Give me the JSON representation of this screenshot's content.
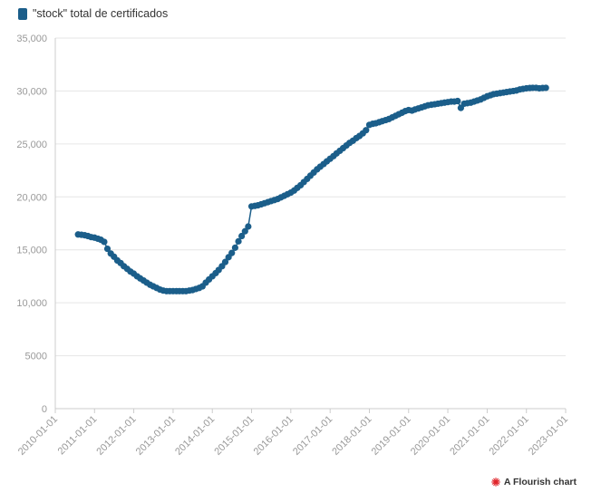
{
  "legend": {
    "label": "\"stock\" total de certificados",
    "color": "#1b5e8a"
  },
  "attribution": {
    "label": "A Flourish chart",
    "icon": "flourish-logo-icon",
    "icon_color": "#e0242a"
  },
  "chart_data": {
    "type": "line",
    "xlabel": "",
    "ylabel": "",
    "x_axis": "date",
    "xlim": [
      "2010-01-01",
      "2023-01-01"
    ],
    "ylim": [
      0,
      35000
    ],
    "grid": true,
    "legend_placement": "top-left",
    "x_ticks": [
      "2010-01-01",
      "2011-01-01",
      "2012-01-01",
      "2013-01-01",
      "2014-01-01",
      "2015-01-01",
      "2016-01-01",
      "2017-01-01",
      "2018-01-01",
      "2019-01-01",
      "2020-01-01",
      "2021-01-01",
      "2022-01-01",
      "2023-01-01"
    ],
    "y_ticks": [
      0,
      5000,
      10000,
      15000,
      20000,
      25000,
      30000,
      35000
    ],
    "y_tick_labels": [
      "0",
      "5000",
      "10,000",
      "15,000",
      "20,000",
      "25,000",
      "30,000",
      "35,000"
    ],
    "series": [
      {
        "name": "\"stock\" total de certificados",
        "color": "#1b5e8a",
        "points": [
          [
            "2010-08-01",
            16450
          ],
          [
            "2010-09-01",
            16420
          ],
          [
            "2010-10-01",
            16380
          ],
          [
            "2010-11-01",
            16300
          ],
          [
            "2010-12-01",
            16200
          ],
          [
            "2011-01-01",
            16150
          ],
          [
            "2011-02-01",
            16050
          ],
          [
            "2011-03-01",
            15950
          ],
          [
            "2011-04-01",
            15750
          ],
          [
            "2011-05-01",
            15100
          ],
          [
            "2011-06-01",
            14650
          ],
          [
            "2011-07-01",
            14350
          ],
          [
            "2011-08-01",
            14000
          ],
          [
            "2011-09-01",
            13750
          ],
          [
            "2011-10-01",
            13450
          ],
          [
            "2011-11-01",
            13200
          ],
          [
            "2011-12-01",
            12950
          ],
          [
            "2012-01-01",
            12750
          ],
          [
            "2012-02-01",
            12500
          ],
          [
            "2012-03-01",
            12300
          ],
          [
            "2012-04-01",
            12100
          ],
          [
            "2012-05-01",
            11900
          ],
          [
            "2012-06-01",
            11700
          ],
          [
            "2012-07-01",
            11550
          ],
          [
            "2012-08-01",
            11400
          ],
          [
            "2012-09-01",
            11250
          ],
          [
            "2012-10-01",
            11150
          ],
          [
            "2012-11-01",
            11100
          ],
          [
            "2012-12-01",
            11100
          ],
          [
            "2013-01-01",
            11100
          ],
          [
            "2013-02-01",
            11100
          ],
          [
            "2013-03-01",
            11100
          ],
          [
            "2013-04-01",
            11100
          ],
          [
            "2013-05-01",
            11100
          ],
          [
            "2013-06-01",
            11150
          ],
          [
            "2013-07-01",
            11200
          ],
          [
            "2013-08-01",
            11300
          ],
          [
            "2013-09-01",
            11400
          ],
          [
            "2013-10-01",
            11550
          ],
          [
            "2013-11-01",
            11900
          ],
          [
            "2013-12-01",
            12200
          ],
          [
            "2014-01-01",
            12500
          ],
          [
            "2014-02-01",
            12800
          ],
          [
            "2014-03-01",
            13100
          ],
          [
            "2014-04-01",
            13450
          ],
          [
            "2014-05-01",
            13850
          ],
          [
            "2014-06-01",
            14300
          ],
          [
            "2014-07-01",
            14700
          ],
          [
            "2014-08-01",
            15200
          ],
          [
            "2014-09-01",
            15800
          ],
          [
            "2014-10-01",
            16300
          ],
          [
            "2014-11-01",
            16750
          ],
          [
            "2014-12-01",
            17200
          ],
          [
            "2015-01-01",
            19100
          ],
          [
            "2015-02-01",
            19150
          ],
          [
            "2015-03-01",
            19200
          ],
          [
            "2015-04-01",
            19300
          ],
          [
            "2015-05-01",
            19400
          ],
          [
            "2015-06-01",
            19500
          ],
          [
            "2015-07-01",
            19600
          ],
          [
            "2015-08-01",
            19700
          ],
          [
            "2015-09-01",
            19800
          ],
          [
            "2015-10-01",
            19950
          ],
          [
            "2015-11-01",
            20100
          ],
          [
            "2015-12-01",
            20250
          ],
          [
            "2016-01-01",
            20400
          ],
          [
            "2016-02-01",
            20600
          ],
          [
            "2016-03-01",
            20850
          ],
          [
            "2016-04-01",
            21100
          ],
          [
            "2016-05-01",
            21400
          ],
          [
            "2016-06-01",
            21700
          ],
          [
            "2016-07-01",
            22000
          ],
          [
            "2016-08-01",
            22300
          ],
          [
            "2016-09-01",
            22600
          ],
          [
            "2016-10-01",
            22850
          ],
          [
            "2016-11-01",
            23100
          ],
          [
            "2016-12-01",
            23350
          ],
          [
            "2017-01-01",
            23600
          ],
          [
            "2017-02-01",
            23850
          ],
          [
            "2017-03-01",
            24100
          ],
          [
            "2017-04-01",
            24350
          ],
          [
            "2017-05-01",
            24600
          ],
          [
            "2017-06-01",
            24850
          ],
          [
            "2017-07-01",
            25100
          ],
          [
            "2017-08-01",
            25300
          ],
          [
            "2017-09-01",
            25550
          ],
          [
            "2017-10-01",
            25750
          ],
          [
            "2017-11-01",
            26000
          ],
          [
            "2017-12-01",
            26300
          ],
          [
            "2018-01-01",
            26800
          ],
          [
            "2018-02-01",
            26900
          ],
          [
            "2018-03-01",
            26950
          ],
          [
            "2018-04-01",
            27050
          ],
          [
            "2018-05-01",
            27150
          ],
          [
            "2018-06-01",
            27250
          ],
          [
            "2018-07-01",
            27350
          ],
          [
            "2018-08-01",
            27500
          ],
          [
            "2018-09-01",
            27650
          ],
          [
            "2018-10-01",
            27800
          ],
          [
            "2018-11-01",
            27950
          ],
          [
            "2018-12-01",
            28100
          ],
          [
            "2019-01-01",
            28200
          ],
          [
            "2019-02-01",
            28150
          ],
          [
            "2019-03-01",
            28250
          ],
          [
            "2019-04-01",
            28350
          ],
          [
            "2019-05-01",
            28450
          ],
          [
            "2019-06-01",
            28550
          ],
          [
            "2019-07-01",
            28650
          ],
          [
            "2019-08-01",
            28700
          ],
          [
            "2019-09-01",
            28750
          ],
          [
            "2019-10-01",
            28800
          ],
          [
            "2019-11-01",
            28850
          ],
          [
            "2019-12-01",
            28900
          ],
          [
            "2020-01-01",
            28950
          ],
          [
            "2020-02-01",
            29000
          ],
          [
            "2020-03-01",
            29000
          ],
          [
            "2020-04-01",
            29050
          ],
          [
            "2020-05-01",
            28400
          ],
          [
            "2020-06-01",
            28800
          ],
          [
            "2020-07-01",
            28850
          ],
          [
            "2020-08-01",
            28900
          ],
          [
            "2020-09-01",
            29000
          ],
          [
            "2020-10-01",
            29100
          ],
          [
            "2020-11-01",
            29200
          ],
          [
            "2020-12-01",
            29350
          ],
          [
            "2021-01-01",
            29500
          ],
          [
            "2021-02-01",
            29600
          ],
          [
            "2021-03-01",
            29700
          ],
          [
            "2021-04-01",
            29750
          ],
          [
            "2021-05-01",
            29800
          ],
          [
            "2021-06-01",
            29850
          ],
          [
            "2021-07-01",
            29900
          ],
          [
            "2021-08-01",
            29950
          ],
          [
            "2021-09-01",
            30000
          ],
          [
            "2021-10-01",
            30050
          ],
          [
            "2021-11-01",
            30150
          ],
          [
            "2021-12-01",
            30200
          ],
          [
            "2022-01-01",
            30250
          ],
          [
            "2022-02-01",
            30280
          ],
          [
            "2022-03-01",
            30300
          ],
          [
            "2022-04-01",
            30300
          ],
          [
            "2022-05-01",
            30250
          ],
          [
            "2022-06-01",
            30280
          ],
          [
            "2022-07-01",
            30300
          ]
        ]
      }
    ]
  }
}
